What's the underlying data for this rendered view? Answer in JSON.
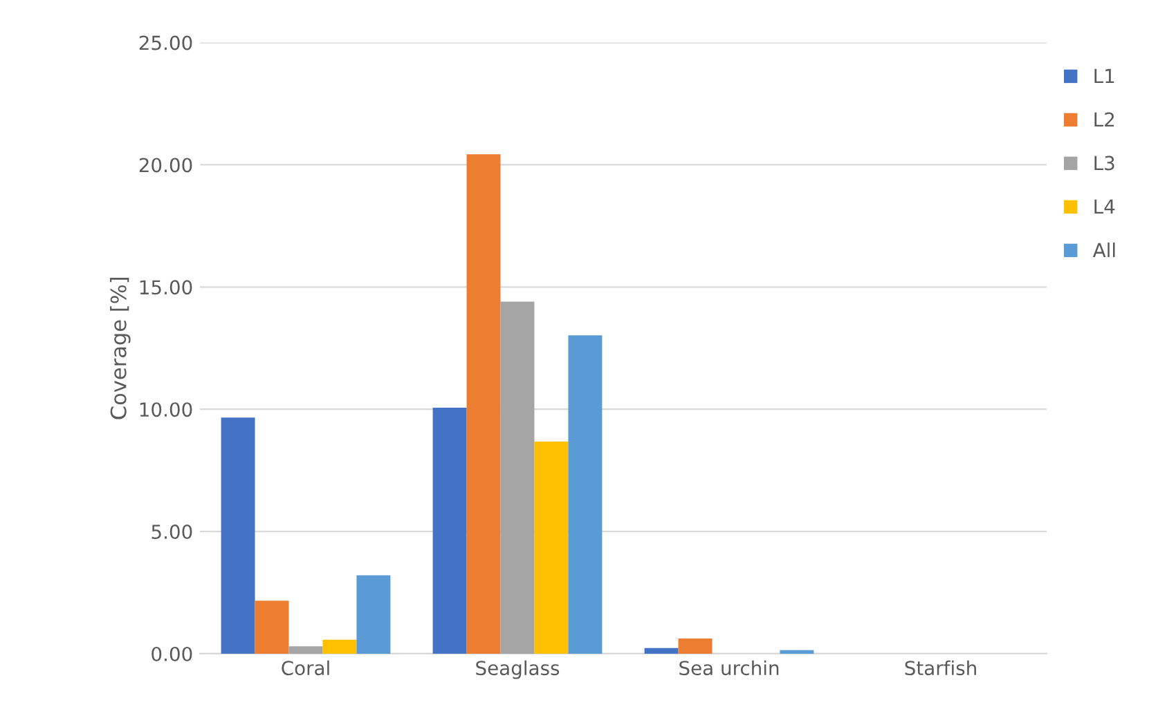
{
  "chart_data": {
    "type": "bar",
    "ylabel": "Coverage [%]",
    "categories": [
      "Coral",
      "Seaglass",
      "Sea urchin",
      "Starfish"
    ],
    "series": [
      {
        "name": "L1",
        "color": "#4472c4",
        "values": [
          9.66,
          10.06,
          0.23,
          0
        ]
      },
      {
        "name": "L2",
        "color": "#ed7d31",
        "values": [
          2.17,
          20.43,
          0.62,
          0
        ]
      },
      {
        "name": "L3",
        "color": "#a5a5a5",
        "values": [
          0.3,
          14.4,
          0,
          0
        ]
      },
      {
        "name": "L4",
        "color": "#ffc000",
        "values": [
          0.57,
          8.68,
          0,
          0
        ]
      },
      {
        "name": "All",
        "color": "#5b9bd5",
        "values": [
          3.21,
          13.02,
          0.15,
          0
        ]
      }
    ],
    "ylim": [
      0,
      25
    ],
    "yticks": [
      {
        "value": 0,
        "label": "0.00"
      },
      {
        "value": 5,
        "label": "5.00"
      },
      {
        "value": 10,
        "label": "10.00"
      },
      {
        "value": 15,
        "label": "15.00"
      },
      {
        "value": 20,
        "label": "20.00"
      },
      {
        "value": 25,
        "label": "25.00"
      }
    ],
    "grid": "y",
    "legend": "right"
  }
}
